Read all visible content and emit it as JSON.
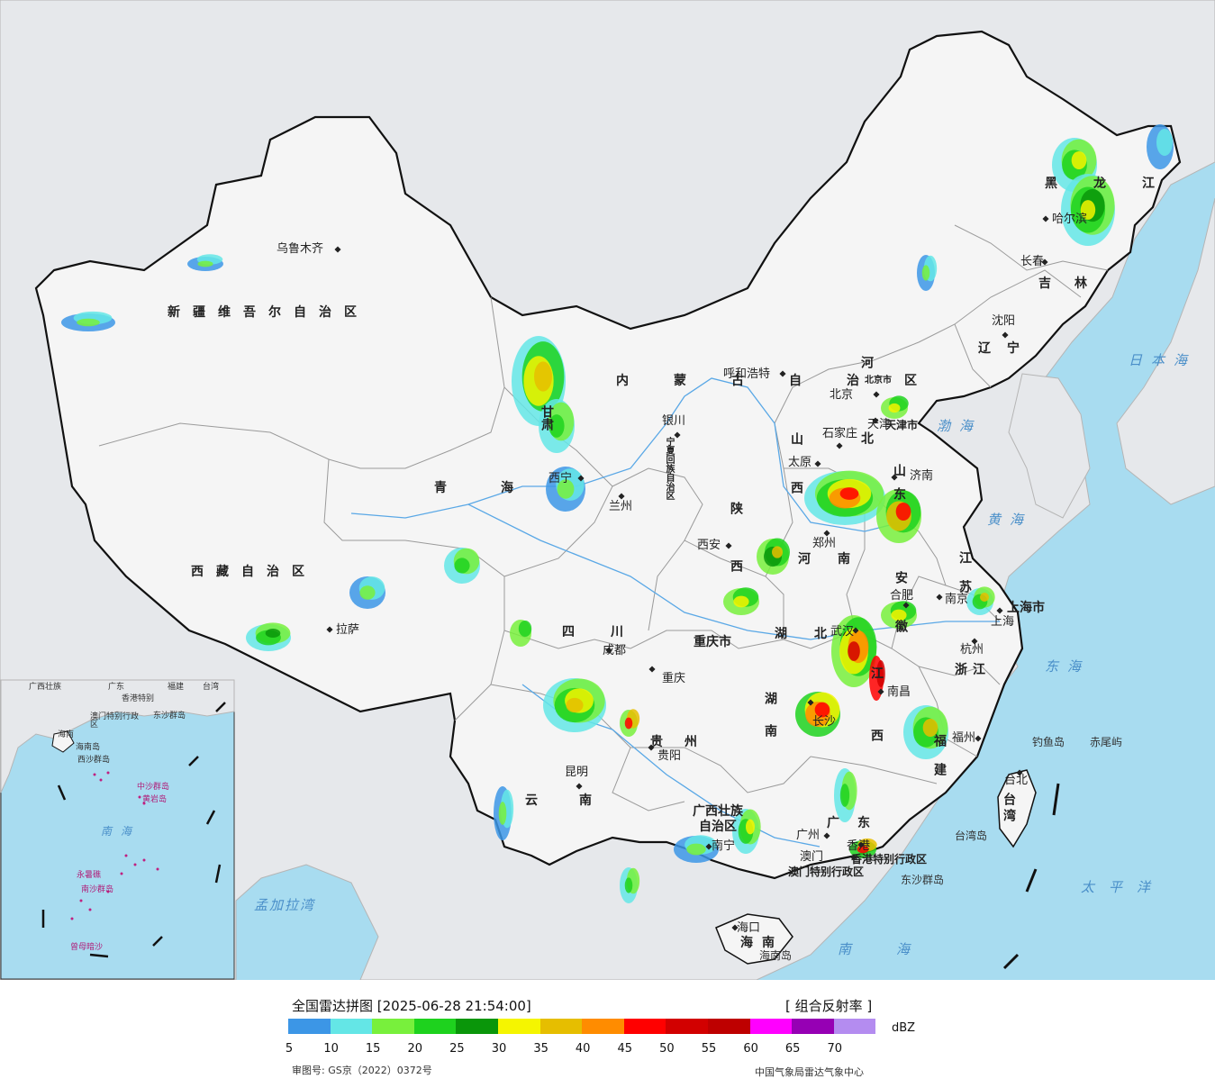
{
  "legend": {
    "title": "全国雷达拼图 [2025-06-28 21:54:00]",
    "product": "[ 组合反射率 ]",
    "unit": "dBZ",
    "ticks": [
      "5",
      "10",
      "15",
      "20",
      "25",
      "30",
      "35",
      "40",
      "45",
      "50",
      "55",
      "60",
      "65",
      "70"
    ],
    "colors": [
      "#3c96e6",
      "#64e6e6",
      "#78f03c",
      "#1ed21e",
      "#0a960a",
      "#f5f500",
      "#e6be00",
      "#ff8c00",
      "#ff0000",
      "#d20000",
      "#be0000",
      "#ff00ff",
      "#9600b4",
      "#b48cf0"
    ],
    "review_number": "审图号: GS京（2022）0372号",
    "credit": "中国气象局雷达气象中心"
  },
  "map": {
    "ocean_color": "#a8dcf0",
    "land_color": "#e9ebee",
    "china_color": "#f4f4f4",
    "cities": [
      "乌鲁木齐",
      "拉萨",
      "西宁",
      "兰州",
      "银川",
      "呼和浩特",
      "北京",
      "天津",
      "石家庄",
      "太原",
      "济南",
      "郑州",
      "西安",
      "成都",
      "重庆",
      "贵阳",
      "昆明",
      "南宁",
      "广州",
      "澳门",
      "香港",
      "海口",
      "长沙",
      "武汉",
      "南昌",
      "合肥",
      "南京",
      "上海",
      "杭州",
      "福州",
      "台北",
      "哈尔滨",
      "长春",
      "沈阳"
    ],
    "provinces": [
      "新疆维吾尔自治区",
      "西藏自治区",
      "青海",
      "甘肃",
      "四川",
      "云南",
      "贵州",
      "重庆市",
      "内蒙古自治区",
      "宁夏回族自治区",
      "陕西",
      "山西",
      "河北",
      "河南",
      "山东",
      "湖北",
      "湖南",
      "广西壮族自治区",
      "广东",
      "海南",
      "江西",
      "安徽",
      "江苏",
      "浙江",
      "福建",
      "台湾",
      "辽宁",
      "吉林",
      "黑龙江",
      "上海市",
      "北京市",
      "天津市",
      "香港特别行政区",
      "澳门特别行政区"
    ],
    "seas": [
      "日本海",
      "渤海",
      "黄海",
      "东海",
      "太平洋",
      "南海",
      "孟加拉湾"
    ],
    "islands": [
      "钓鱼岛",
      "赤尾屿",
      "台湾岛",
      "东沙群岛",
      "海南岛"
    ],
    "inset": [
      "广西壮族",
      "广东",
      "福建",
      "台湾",
      "香港特别",
      "澳门特别行政区",
      "东沙群岛",
      "海南",
      "海南岛",
      "西沙群岛",
      "中沙群岛",
      "黄岩岛",
      "南海",
      "永暑礁",
      "南沙群岛",
      "曾母暗沙"
    ]
  }
}
